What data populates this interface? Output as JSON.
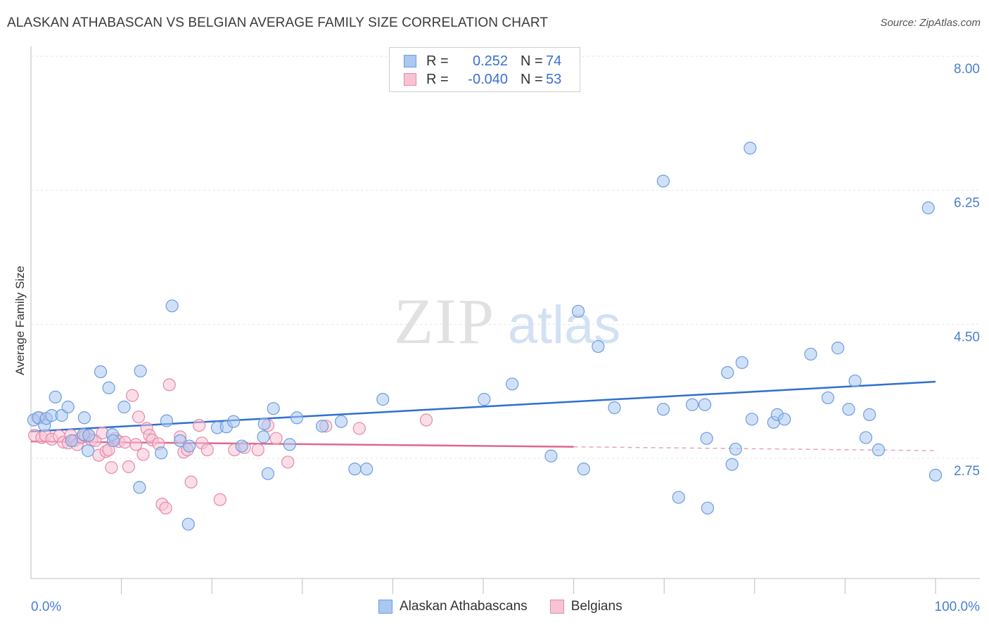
{
  "title": "ALASKAN ATHABASCAN VS BELGIAN AVERAGE FAMILY SIZE CORRELATION CHART",
  "source": "Source: ZipAtlas.com",
  "watermark": {
    "zip": "ZIP",
    "atlas": "atlas"
  },
  "legend": {
    "rows": [
      {
        "r_label": "R =",
        "r_value": "0.252",
        "n_label": "N =",
        "n_value": "74",
        "color": "#aac8f0",
        "border": "#6d9ce0"
      },
      {
        "r_label": "R =",
        "r_value": "-0.040",
        "n_label": "N =",
        "n_value": "53",
        "color": "#f7c3d3",
        "border": "#e38aa8"
      }
    ]
  },
  "bottom_legend": [
    {
      "label": "Alaskan Athabascans",
      "color": "#aac8f0",
      "border": "#6d9ce0"
    },
    {
      "label": "Belgians",
      "color": "#f7c3d3",
      "border": "#e38aa8"
    }
  ],
  "chart_data": {
    "type": "scatter",
    "title": "ALASKAN ATHABASCAN VS BELGIAN AVERAGE FAMILY SIZE CORRELATION CHART",
    "xlabel": "",
    "ylabel": "Average Family Size",
    "xlim": [
      0,
      100
    ],
    "ylim": [
      1.6,
      8.25
    ],
    "x_tick_labels": [
      "0.0%",
      "100.0%"
    ],
    "y_ticks": [
      2.75,
      4.5,
      6.25,
      8.0
    ],
    "y_tick_labels": [
      "2.75",
      "4.50",
      "6.25",
      "8.00"
    ],
    "grid": true,
    "series": [
      {
        "name": "Alaskan Athabascans",
        "color": "#6d9ce0",
        "fill": "#aac8f0",
        "trend": {
          "x": [
            0,
            100
          ],
          "y": [
            3.1,
            3.75
          ]
        },
        "points": [
          [
            0.3,
            3.25
          ],
          [
            0.8,
            3.28
          ],
          [
            1.5,
            3.18
          ],
          [
            1.7,
            3.27
          ],
          [
            2.3,
            3.31
          ],
          [
            2.7,
            3.55
          ],
          [
            3.4,
            3.31
          ],
          [
            4.1,
            3.42
          ],
          [
            4.5,
            2.98
          ],
          [
            5.8,
            3.06
          ],
          [
            5.9,
            3.28
          ],
          [
            6.3,
            2.85
          ],
          [
            6.4,
            3.05
          ],
          [
            7.7,
            3.88
          ],
          [
            8.6,
            3.67
          ],
          [
            9.0,
            3.06
          ],
          [
            9.1,
            2.98
          ],
          [
            10.3,
            3.42
          ],
          [
            12.0,
            2.37
          ],
          [
            12.1,
            3.89
          ],
          [
            14.4,
            2.82
          ],
          [
            15.0,
            3.24
          ],
          [
            15.6,
            4.74
          ],
          [
            16.5,
            2.98
          ],
          [
            17.5,
            2.91
          ],
          [
            17.4,
            1.89
          ],
          [
            20.6,
            3.15
          ],
          [
            21.6,
            3.16
          ],
          [
            22.4,
            3.23
          ],
          [
            23.3,
            2.91
          ],
          [
            25.7,
            3.03
          ],
          [
            25.8,
            3.2
          ],
          [
            26.2,
            2.55
          ],
          [
            26.8,
            3.4
          ],
          [
            28.6,
            2.93
          ],
          [
            29.4,
            3.28
          ],
          [
            32.2,
            3.17
          ],
          [
            34.3,
            3.23
          ],
          [
            35.8,
            2.61
          ],
          [
            37.1,
            2.61
          ],
          [
            38.9,
            3.52
          ],
          [
            53.2,
            3.72
          ],
          [
            57.5,
            2.78
          ],
          [
            60.5,
            4.67
          ],
          [
            61.1,
            2.61
          ],
          [
            62.7,
            4.21
          ],
          [
            64.5,
            3.41
          ],
          [
            69.9,
            6.37
          ],
          [
            69.9,
            3.39
          ],
          [
            71.6,
            2.24
          ],
          [
            73.1,
            3.45
          ],
          [
            74.5,
            3.45
          ],
          [
            74.7,
            3.01
          ],
          [
            74.8,
            2.1
          ],
          [
            77.0,
            3.87
          ],
          [
            77.5,
            2.67
          ],
          [
            77.9,
            2.87
          ],
          [
            78.6,
            4.0
          ],
          [
            79.5,
            6.8
          ],
          [
            79.7,
            3.26
          ],
          [
            82.1,
            3.22
          ],
          [
            82.5,
            3.32
          ],
          [
            83.3,
            3.26
          ],
          [
            86.2,
            4.11
          ],
          [
            88.1,
            3.54
          ],
          [
            89.2,
            4.19
          ],
          [
            90.4,
            3.39
          ],
          [
            91.1,
            3.76
          ],
          [
            92.3,
            3.02
          ],
          [
            92.7,
            3.32
          ],
          [
            93.7,
            2.86
          ],
          [
            99.2,
            6.02
          ],
          [
            100.0,
            2.53
          ],
          [
            50.1,
            3.52
          ]
        ]
      },
      {
        "name": "Belgians",
        "color": "#e38aa8",
        "fill": "#f7c3d3",
        "trend": {
          "x": [
            0,
            60
          ],
          "y": [
            2.97,
            2.9
          ],
          "dashed_to": [
            100,
            2.85
          ]
        },
        "points": [
          [
            0.4,
            3.05
          ],
          [
            0.9,
            3.28
          ],
          [
            1.2,
            3.02
          ],
          [
            1.6,
            3.05
          ],
          [
            2.3,
            3.0
          ],
          [
            3.1,
            3.04
          ],
          [
            3.6,
            2.96
          ],
          [
            4.1,
            2.95
          ],
          [
            4.4,
            3.05
          ],
          [
            4.8,
            2.98
          ],
          [
            5.1,
            2.93
          ],
          [
            5.6,
            3.02
          ],
          [
            6.0,
            3.05
          ],
          [
            6.4,
            3.05
          ],
          [
            6.7,
            2.99
          ],
          [
            7.1,
            2.98
          ],
          [
            7.5,
            2.79
          ],
          [
            7.9,
            3.08
          ],
          [
            8.3,
            2.84
          ],
          [
            8.6,
            2.86
          ],
          [
            8.9,
            2.63
          ],
          [
            9.3,
            3.01
          ],
          [
            9.7,
            2.97
          ],
          [
            10.4,
            2.96
          ],
          [
            10.8,
            2.64
          ],
          [
            11.2,
            3.57
          ],
          [
            11.6,
            2.93
          ],
          [
            11.9,
            3.29
          ],
          [
            12.4,
            2.8
          ],
          [
            12.8,
            3.14
          ],
          [
            13.1,
            3.05
          ],
          [
            13.4,
            2.99
          ],
          [
            14.1,
            2.94
          ],
          [
            14.5,
            2.15
          ],
          [
            14.9,
            2.1
          ],
          [
            15.3,
            3.71
          ],
          [
            16.5,
            3.03
          ],
          [
            16.9,
            2.83
          ],
          [
            17.3,
            2.86
          ],
          [
            17.7,
            2.44
          ],
          [
            18.6,
            3.18
          ],
          [
            18.9,
            2.95
          ],
          [
            19.5,
            2.86
          ],
          [
            20.9,
            2.21
          ],
          [
            22.5,
            2.86
          ],
          [
            23.6,
            2.89
          ],
          [
            25.1,
            2.86
          ],
          [
            26.2,
            3.18
          ],
          [
            27.1,
            3.01
          ],
          [
            28.4,
            2.7
          ],
          [
            32.6,
            3.17
          ],
          [
            36.3,
            3.14
          ],
          [
            43.7,
            3.25
          ]
        ]
      }
    ]
  }
}
